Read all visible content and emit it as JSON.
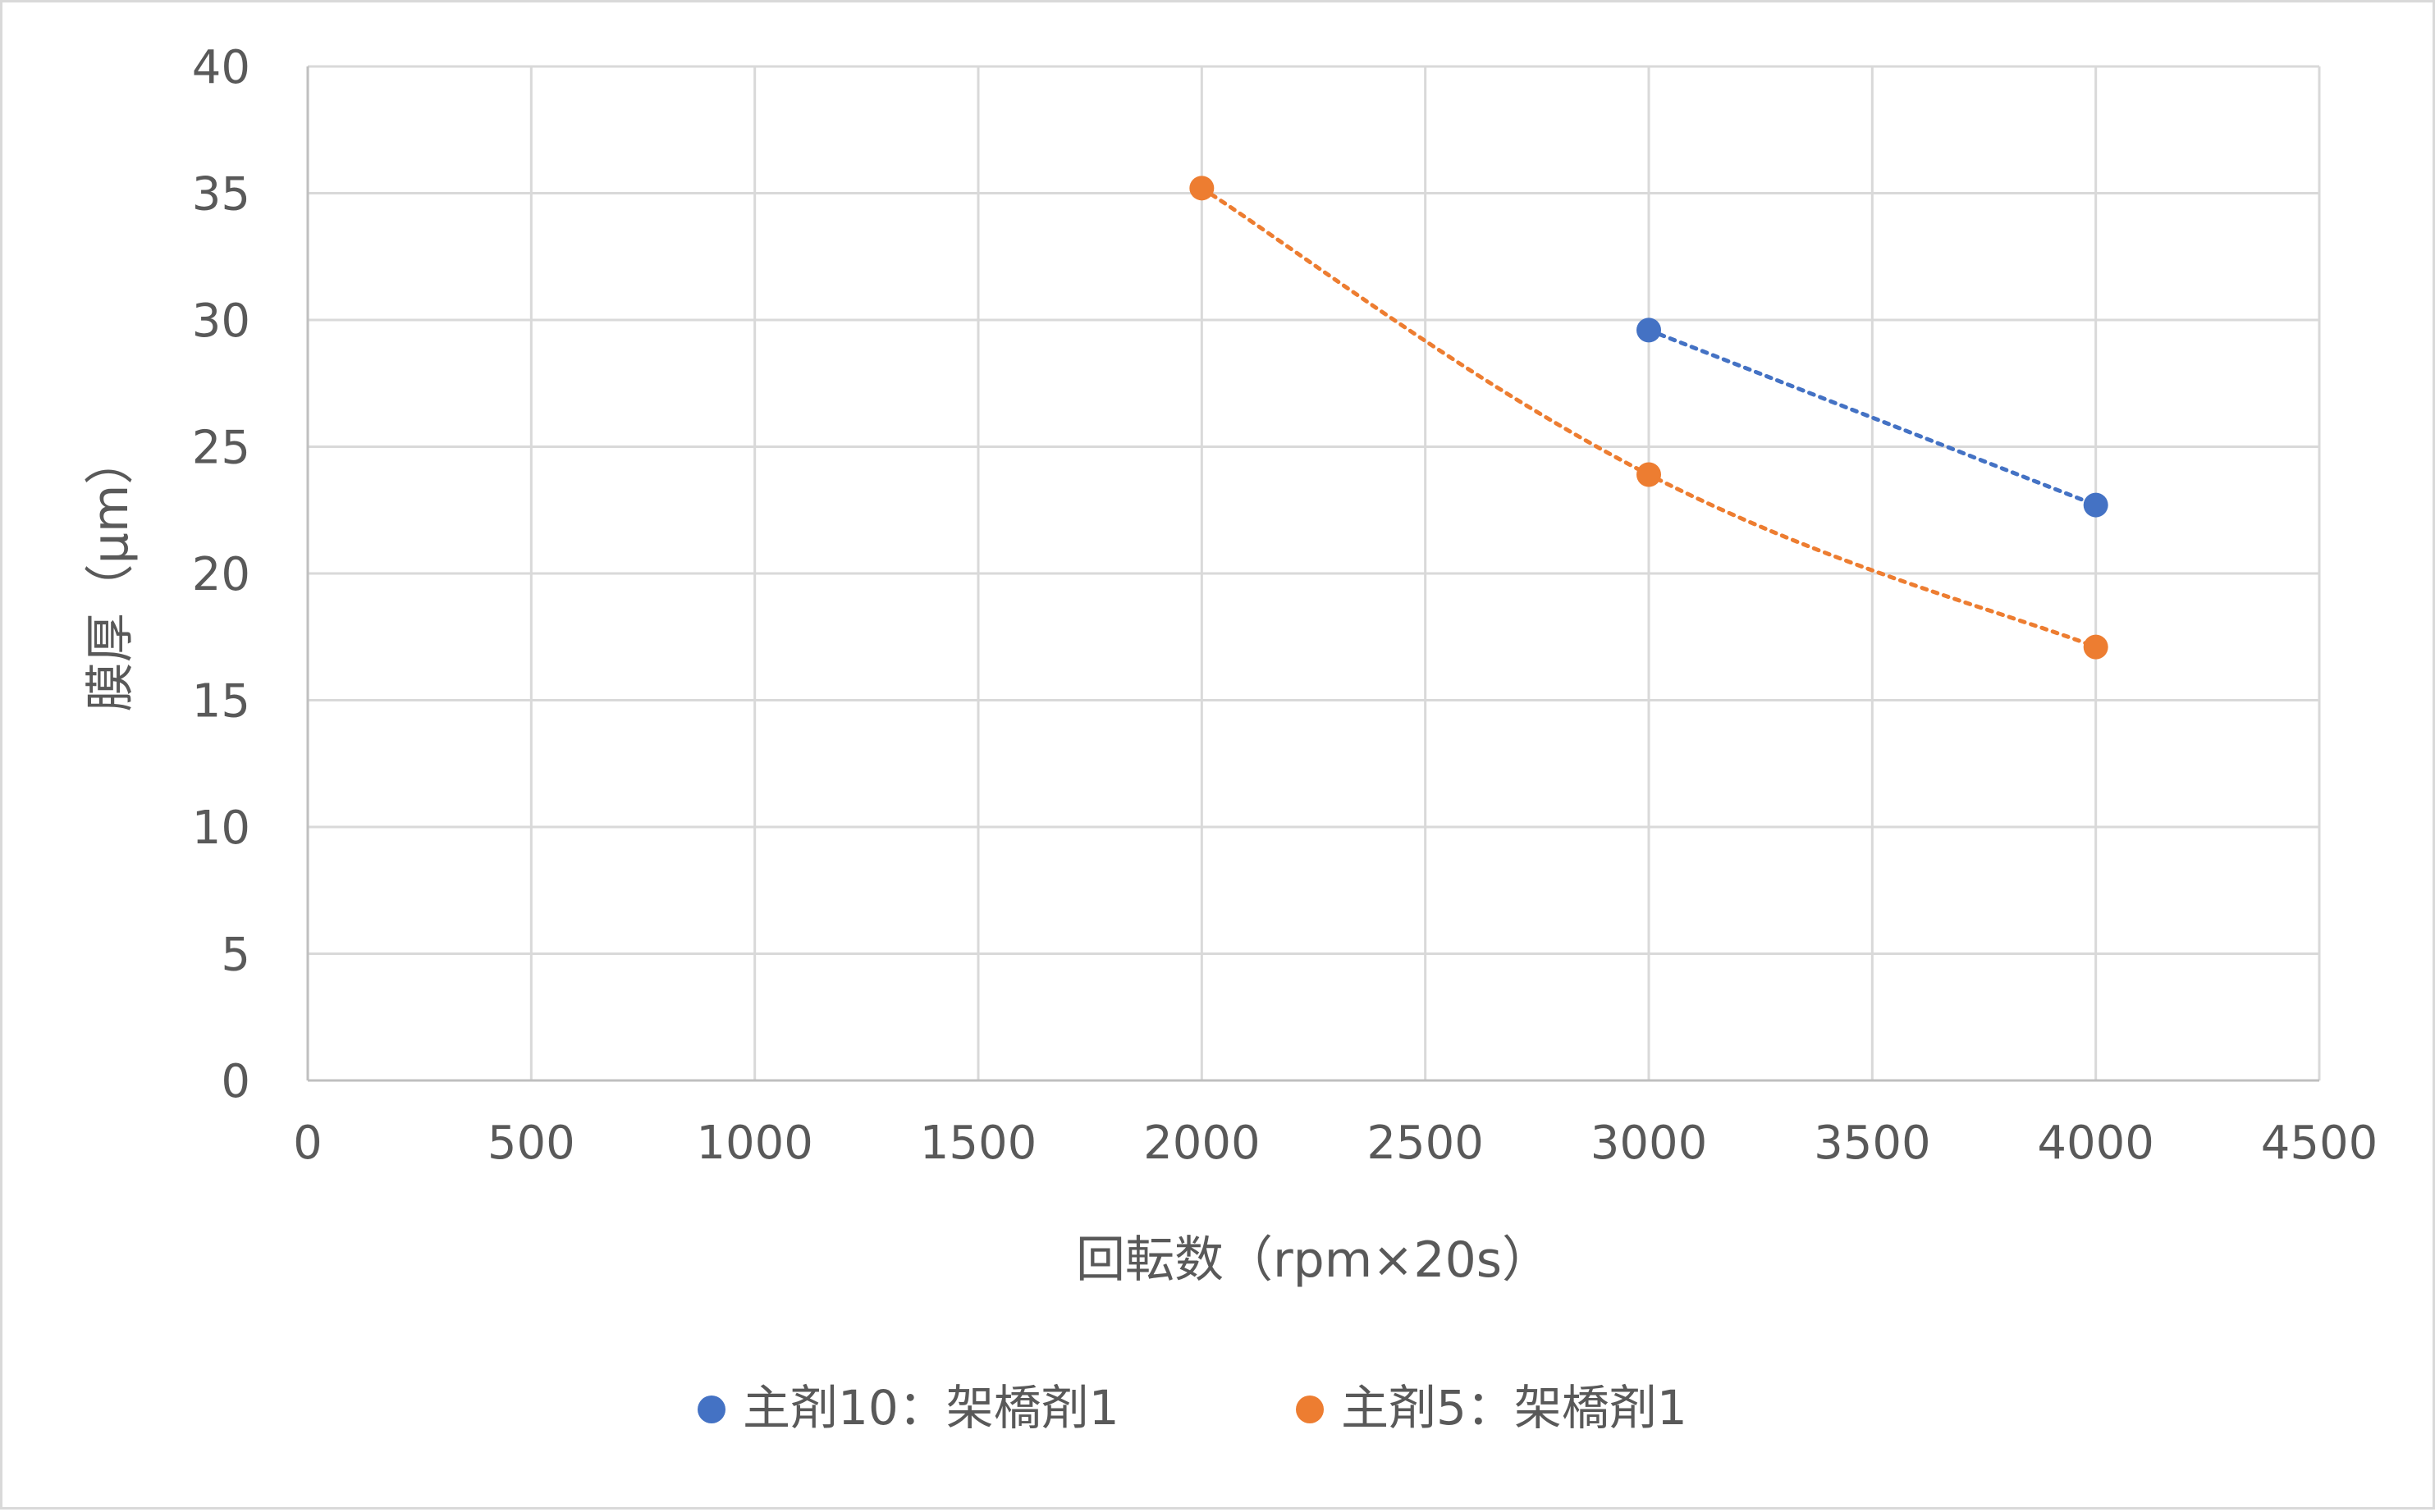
{
  "chart_data": {
    "type": "scatter",
    "title": "",
    "xlabel": "回転数（rpm×20s）",
    "ylabel": "膜厚（μm）",
    "xlim": [
      0,
      4500
    ],
    "ylim": [
      0,
      40
    ],
    "x_ticks": [
      "0",
      "500",
      "1000",
      "1500",
      "2000",
      "2500",
      "3000",
      "3500",
      "4000",
      "4500"
    ],
    "y_ticks": [
      "0",
      "5",
      "10",
      "15",
      "20",
      "25",
      "30",
      "35",
      "40"
    ],
    "grid": true,
    "legend_position": "bottom",
    "series": [
      {
        "name": "主剤10：架橋剤1",
        "color": "#4472c4",
        "line_style": "dotted",
        "x": [
          3000,
          4000
        ],
        "y": [
          29.6,
          22.7
        ]
      },
      {
        "name": "主剤5：架橋剤1",
        "color": "#ed7d31",
        "line_style": "dotted",
        "x": [
          2000,
          3000,
          4000
        ],
        "y": [
          35.2,
          23.9,
          17.1
        ]
      }
    ]
  }
}
